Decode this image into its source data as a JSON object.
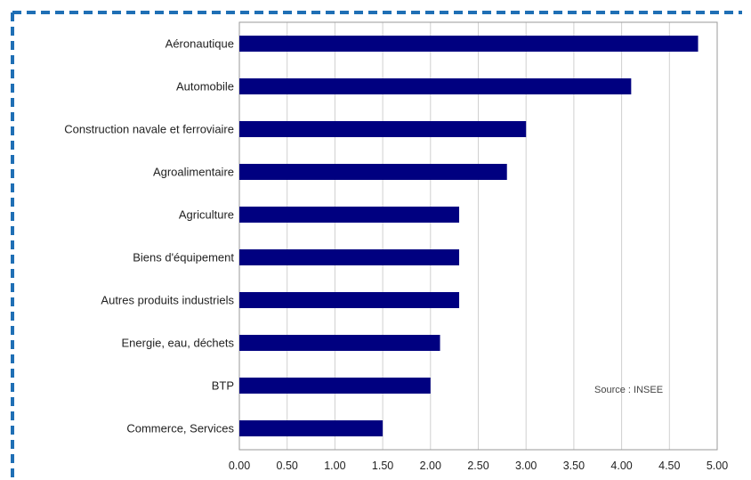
{
  "chart_data": {
    "type": "bar",
    "orientation": "horizontal",
    "categories": [
      "Aéronautique",
      "Automobile",
      "Construction navale et ferroviaire",
      "Agroalimentaire",
      "Agriculture",
      "Biens d'équipement",
      "Autres produits industriels",
      "Energie, eau, déchets",
      "BTP",
      "Commerce, Services"
    ],
    "values": [
      4.8,
      4.1,
      3.0,
      2.8,
      2.3,
      2.3,
      2.3,
      2.1,
      2.0,
      1.5
    ],
    "xlim": [
      0,
      5
    ],
    "xticks": [
      "0.00",
      "0.50",
      "1.00",
      "1.50",
      "2.00",
      "2.50",
      "3.00",
      "3.50",
      "4.00",
      "4.50",
      "5.00"
    ],
    "title": "",
    "xlabel": "",
    "ylabel": "",
    "grid": true,
    "legend": "none",
    "annotation": "Source : INSEE"
  },
  "colors": {
    "bar": "#000080",
    "border": "#1f6fb5",
    "grid": "#d0d0d0",
    "axis": "#9a9a9a"
  }
}
